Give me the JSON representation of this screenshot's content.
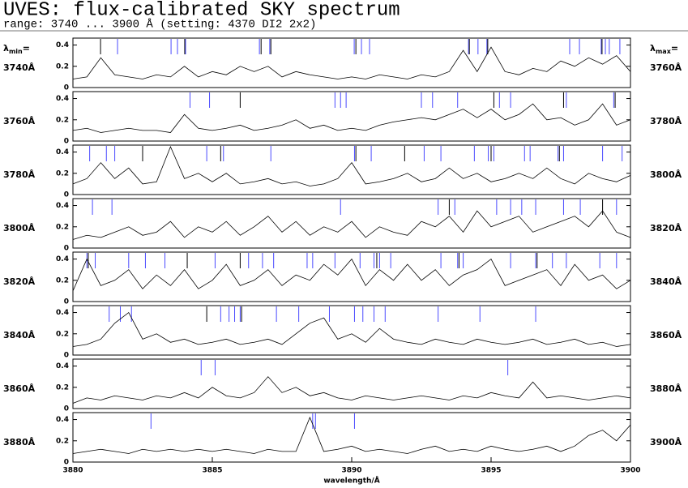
{
  "header": {
    "title": "UVES: flux-calibrated SKY spectrum",
    "subtitle": "range: 3740 ... 3900 Å (setting: 4370 DI2 2x2)",
    "lambda_min": {
      "symbol": "λ",
      "sub": "min",
      "eq": "="
    },
    "lambda_max": {
      "symbol": "λ",
      "sub": "max",
      "eq": "="
    }
  },
  "chart_data": [
    {
      "type": "line",
      "xlim": [
        3740,
        3760
      ],
      "range_labels": [
        "3740Å",
        "3760Å"
      ],
      "ylim": [
        0,
        0.45
      ],
      "yticks": [
        0,
        0.2,
        0.4
      ],
      "color": "#000000",
      "x": [
        3740,
        3740.5,
        3741,
        3741.5,
        3742,
        3742.5,
        3743,
        3743.5,
        3744,
        3744.5,
        3745,
        3745.5,
        3746,
        3746.5,
        3747,
        3747.5,
        3748,
        3748.5,
        3749,
        3749.5,
        3750,
        3750.5,
        3751,
        3751.5,
        3752,
        3752.5,
        3753,
        3753.5,
        3754,
        3754.5,
        3755,
        3755.5,
        3756,
        3756.5,
        3757,
        3757.5,
        3758,
        3758.5,
        3759,
        3759.5,
        3760
      ],
      "values": [
        0.08,
        0.1,
        0.28,
        0.12,
        0.1,
        0.08,
        0.12,
        0.1,
        0.2,
        0.1,
        0.15,
        0.12,
        0.2,
        0.15,
        0.2,
        0.1,
        0.15,
        0.12,
        0.1,
        0.08,
        0.1,
        0.08,
        0.12,
        0.1,
        0.08,
        0.12,
        0.1,
        0.15,
        0.35,
        0.15,
        0.38,
        0.15,
        0.12,
        0.18,
        0.15,
        0.25,
        0.2,
        0.28,
        0.22,
        0.3,
        0.15
      ],
      "markers": [
        {
          "color": "#4a4aff",
          "x": [
            3741.6,
            3743.52,
            3743.75,
            3744.04,
            3746.69,
            3747.06,
            3750.09,
            3750.35,
            3750.64,
            3754.19,
            3754.53,
            3754.85,
            3757.82,
            3758.17,
            3758.95,
            3759.1,
            3759.24,
            3759.62
          ]
        },
        {
          "color": "#000000",
          "x": [
            3740.99,
            3744.01,
            3746.75,
            3747.1,
            3750.15,
            3754.22,
            3754.88,
            3758.98
          ]
        }
      ]
    },
    {
      "type": "line",
      "xlim": [
        3760,
        3780
      ],
      "range_labels": [
        "3760Å",
        "3780Å"
      ],
      "ylim": [
        0,
        0.45
      ],
      "yticks": [
        0,
        0.2,
        0.4
      ],
      "color": "#000000",
      "x": [
        3760,
        3760.5,
        3761,
        3761.5,
        3762,
        3762.5,
        3763,
        3763.5,
        3764,
        3764.5,
        3765,
        3765.5,
        3766,
        3766.5,
        3767,
        3767.5,
        3768,
        3768.5,
        3769,
        3769.5,
        3770,
        3770.5,
        3771,
        3771.5,
        3772,
        3772.5,
        3773,
        3773.5,
        3774,
        3774.5,
        3775,
        3775.5,
        3776,
        3776.5,
        3777,
        3777.5,
        3778,
        3778.5,
        3779,
        3779.5,
        3780
      ],
      "values": [
        0.1,
        0.12,
        0.08,
        0.1,
        0.12,
        0.1,
        0.1,
        0.08,
        0.25,
        0.12,
        0.1,
        0.12,
        0.15,
        0.1,
        0.12,
        0.15,
        0.2,
        0.12,
        0.15,
        0.1,
        0.12,
        0.1,
        0.15,
        0.18,
        0.2,
        0.22,
        0.2,
        0.25,
        0.3,
        0.22,
        0.3,
        0.2,
        0.25,
        0.35,
        0.2,
        0.22,
        0.15,
        0.2,
        0.35,
        0.15,
        0.2
      ],
      "markers": [
        {
          "color": "#4a4aff",
          "x": [
            3764.2,
            3764.9,
            3769.4,
            3769.6,
            3769.8,
            3772.5,
            3772.9,
            3773.8,
            3775.3,
            3775.7,
            3777.7,
            3779.4
          ]
        },
        {
          "color": "#000000",
          "x": [
            3766,
            3775.1,
            3777.6,
            3779.45
          ]
        }
      ]
    },
    {
      "type": "line",
      "xlim": [
        3780,
        3800
      ],
      "range_labels": [
        "3780Å",
        "3800Å"
      ],
      "ylim": [
        0,
        0.45
      ],
      "yticks": [
        0,
        0.2,
        0.4
      ],
      "color": "#000000",
      "x": [
        3780,
        3780.5,
        3781,
        3781.5,
        3782,
        3782.5,
        3783,
        3783.5,
        3784,
        3784.5,
        3785,
        3785.5,
        3786,
        3786.5,
        3787,
        3787.5,
        3788,
        3788.5,
        3789,
        3789.5,
        3790,
        3790.5,
        3791,
        3791.5,
        3792,
        3792.5,
        3793,
        3793.5,
        3794,
        3794.5,
        3795,
        3795.5,
        3796,
        3796.5,
        3797,
        3797.5,
        3798,
        3798.5,
        3799,
        3799.5,
        3800
      ],
      "values": [
        0.1,
        0.15,
        0.3,
        0.15,
        0.25,
        0.1,
        0.12,
        0.45,
        0.15,
        0.2,
        0.12,
        0.2,
        0.1,
        0.12,
        0.15,
        0.1,
        0.12,
        0.08,
        0.1,
        0.15,
        0.3,
        0.1,
        0.12,
        0.15,
        0.2,
        0.12,
        0.15,
        0.25,
        0.15,
        0.2,
        0.12,
        0.15,
        0.2,
        0.15,
        0.25,
        0.15,
        0.1,
        0.2,
        0.15,
        0.12,
        0.18
      ],
      "markers": [
        {
          "color": "#4a4aff",
          "x": [
            3780.6,
            3781.2,
            3781.5,
            3784.8,
            3785.4,
            3787.1,
            3790.1,
            3790.7,
            3792.6,
            3793.2,
            3794.4,
            3794.9,
            3795.1,
            3796.2,
            3796.4,
            3797.4,
            3797.6,
            3799,
            3799.7
          ]
        },
        {
          "color": "#000000",
          "x": [
            3782.5,
            3785.3,
            3790.15,
            3791.9,
            3795,
            3797.45
          ]
        }
      ]
    },
    {
      "type": "line",
      "xlim": [
        3800,
        3820
      ],
      "range_labels": [
        "3800Å",
        "3820Å"
      ],
      "ylim": [
        0,
        0.45
      ],
      "yticks": [
        0,
        0.2,
        0.4
      ],
      "color": "#000000",
      "x": [
        3800,
        3800.5,
        3801,
        3801.5,
        3802,
        3802.5,
        3803,
        3803.5,
        3804,
        3804.5,
        3805,
        3805.5,
        3806,
        3806.5,
        3807,
        3807.5,
        3808,
        3808.5,
        3809,
        3809.5,
        3810,
        3810.5,
        3811,
        3811.5,
        3812,
        3812.5,
        3813,
        3813.5,
        3814,
        3814.5,
        3815,
        3815.5,
        3816,
        3816.5,
        3817,
        3817.5,
        3818,
        3818.5,
        3819,
        3819.5,
        3820
      ],
      "values": [
        0.08,
        0.12,
        0.1,
        0.15,
        0.2,
        0.12,
        0.15,
        0.25,
        0.1,
        0.2,
        0.15,
        0.25,
        0.12,
        0.2,
        0.3,
        0.15,
        0.25,
        0.12,
        0.2,
        0.15,
        0.25,
        0.1,
        0.2,
        0.15,
        0.12,
        0.25,
        0.2,
        0.3,
        0.15,
        0.35,
        0.2,
        0.25,
        0.3,
        0.15,
        0.2,
        0.25,
        0.3,
        0.2,
        0.35,
        0.15,
        0.1
      ],
      "markers": [
        {
          "color": "#4a4aff",
          "x": [
            3800.7,
            3801.4,
            3809.6,
            3813.1,
            3813.7,
            3815.2,
            3815.7,
            3816.1,
            3816.6,
            3817.6,
            3818.2,
            3819.5
          ]
        },
        {
          "color": "#000000",
          "x": [
            3813.5,
            3819
          ]
        }
      ]
    },
    {
      "type": "line",
      "xlim": [
        3820,
        3840
      ],
      "range_labels": [
        "3820Å",
        "3840Å"
      ],
      "ylim": [
        0,
        0.45
      ],
      "yticks": [
        0,
        0.2,
        0.4
      ],
      "color": "#000000",
      "x": [
        3820,
        3820.5,
        3821,
        3821.5,
        3822,
        3822.5,
        3823,
        3823.5,
        3824,
        3824.5,
        3825,
        3825.5,
        3826,
        3826.5,
        3827,
        3827.5,
        3828,
        3828.5,
        3829,
        3829.5,
        3830,
        3830.5,
        3831,
        3831.5,
        3832,
        3832.5,
        3833,
        3833.5,
        3834,
        3834.5,
        3835,
        3835.5,
        3836,
        3836.5,
        3837,
        3837.5,
        3838,
        3838.5,
        3839,
        3839.5,
        3840
      ],
      "values": [
        0.1,
        0.4,
        0.15,
        0.2,
        0.3,
        0.12,
        0.25,
        0.15,
        0.3,
        0.12,
        0.2,
        0.35,
        0.15,
        0.2,
        0.3,
        0.15,
        0.25,
        0.2,
        0.35,
        0.25,
        0.4,
        0.15,
        0.3,
        0.2,
        0.35,
        0.2,
        0.3,
        0.15,
        0.25,
        0.3,
        0.4,
        0.15,
        0.2,
        0.25,
        0.3,
        0.15,
        0.35,
        0.2,
        0.25,
        0.12,
        0.2
      ],
      "markers": [
        {
          "color": "#4a4aff",
          "x": [
            3820.5,
            3820.8,
            3822,
            3822.6,
            3823.3,
            3825.1,
            3826.3,
            3826.8,
            3827.2,
            3828.4,
            3828.6,
            3829.4,
            3830.3,
            3830.8,
            3831,
            3831.4,
            3833.2,
            3833.8,
            3834,
            3835.7,
            3836.6,
            3837.2,
            3837.7,
            3838.9,
            3839.5
          ]
        },
        {
          "color": "#000000",
          "x": [
            3820.55,
            3824.1,
            3826,
            3830.9,
            3833.85,
            3836.65
          ]
        }
      ]
    },
    {
      "type": "line",
      "xlim": [
        3840,
        3860
      ],
      "range_labels": [
        "3840Å",
        "3860Å"
      ],
      "ylim": [
        0,
        0.45
      ],
      "yticks": [
        0,
        0.2,
        0.4
      ],
      "color": "#000000",
      "x": [
        3840,
        3840.5,
        3841,
        3841.5,
        3842,
        3842.5,
        3843,
        3843.5,
        3844,
        3844.5,
        3845,
        3845.5,
        3846,
        3846.5,
        3847,
        3847.5,
        3848,
        3848.5,
        3849,
        3849.5,
        3850,
        3850.5,
        3851,
        3851.5,
        3852,
        3852.5,
        3853,
        3853.5,
        3854,
        3854.5,
        3855,
        3855.5,
        3856,
        3856.5,
        3857,
        3857.5,
        3858,
        3858.5,
        3859,
        3859.5,
        3860
      ],
      "values": [
        0.08,
        0.1,
        0.15,
        0.3,
        0.4,
        0.15,
        0.2,
        0.12,
        0.15,
        0.1,
        0.12,
        0.15,
        0.1,
        0.12,
        0.15,
        0.1,
        0.2,
        0.3,
        0.35,
        0.15,
        0.2,
        0.12,
        0.25,
        0.15,
        0.12,
        0.1,
        0.15,
        0.12,
        0.1,
        0.15,
        0.12,
        0.1,
        0.12,
        0.15,
        0.1,
        0.12,
        0.15,
        0.1,
        0.12,
        0.08,
        0.1
      ],
      "markers": [
        {
          "color": "#4a4aff",
          "x": [
            3841.3,
            3841.7,
            3842.1,
            3845.3,
            3845.6,
            3845.8,
            3846,
            3847.3,
            3848.1,
            3849.2,
            3850.1,
            3850.4,
            3850.8,
            3851.2,
            3853.1,
            3854.6,
            3856.6
          ]
        },
        {
          "color": "#000000",
          "x": [
            3844.8,
            3846.05
          ]
        }
      ]
    },
    {
      "type": "line",
      "xlim": [
        3860,
        3880
      ],
      "range_labels": [
        "3860Å",
        "3880Å"
      ],
      "ylim": [
        0,
        0.45
      ],
      "yticks": [
        0,
        0.2,
        0.4
      ],
      "color": "#000000",
      "x": [
        3860,
        3860.5,
        3861,
        3861.5,
        3862,
        3862.5,
        3863,
        3863.5,
        3864,
        3864.5,
        3865,
        3865.5,
        3866,
        3866.5,
        3867,
        3867.5,
        3868,
        3868.5,
        3869,
        3869.5,
        3870,
        3870.5,
        3871,
        3871.5,
        3872,
        3872.5,
        3873,
        3873.5,
        3874,
        3874.5,
        3875,
        3875.5,
        3876,
        3876.5,
        3877,
        3877.5,
        3878,
        3878.5,
        3879,
        3879.5,
        3880
      ],
      "values": [
        0.05,
        0.1,
        0.08,
        0.12,
        0.1,
        0.08,
        0.12,
        0.1,
        0.15,
        0.1,
        0.2,
        0.12,
        0.1,
        0.15,
        0.3,
        0.15,
        0.2,
        0.12,
        0.15,
        0.1,
        0.08,
        0.12,
        0.1,
        0.08,
        0.1,
        0.12,
        0.1,
        0.08,
        0.12,
        0.1,
        0.15,
        0.12,
        0.1,
        0.25,
        0.1,
        0.12,
        0.1,
        0.08,
        0.1,
        0.12,
        0.1
      ],
      "markers": [
        {
          "color": "#4a4aff",
          "x": [
            3864.6,
            3865.1,
            3875.6
          ]
        }
      ]
    },
    {
      "type": "line",
      "xlim": [
        3880,
        3900
      ],
      "range_labels": [
        "3880Å",
        "3900Å"
      ],
      "ylim": [
        0,
        0.45
      ],
      "yticks": [
        0,
        0.2,
        0.4
      ],
      "color": "#000000",
      "xticks": [
        3880,
        3885,
        3890,
        3895,
        3900
      ],
      "xlabel": "wavelength/Å",
      "x": [
        3880,
        3880.5,
        3881,
        3881.5,
        3882,
        3882.5,
        3883,
        3883.5,
        3884,
        3884.5,
        3885,
        3885.5,
        3886,
        3886.5,
        3887,
        3887.5,
        3888,
        3888.5,
        3889,
        3889.5,
        3890,
        3890.5,
        3891,
        3891.5,
        3892,
        3892.5,
        3893,
        3893.5,
        3894,
        3894.5,
        3895,
        3895.5,
        3896,
        3896.5,
        3897,
        3897.5,
        3898,
        3898.5,
        3899,
        3899.5,
        3900
      ],
      "values": [
        0.08,
        0.1,
        0.12,
        0.1,
        0.08,
        0.12,
        0.1,
        0.12,
        0.1,
        0.12,
        0.1,
        0.12,
        0.1,
        0.08,
        0.12,
        0.1,
        0.1,
        0.42,
        0.1,
        0.12,
        0.15,
        0.1,
        0.12,
        0.1,
        0.08,
        0.12,
        0.15,
        0.1,
        0.12,
        0.1,
        0.15,
        0.12,
        0.1,
        0.12,
        0.15,
        0.1,
        0.15,
        0.25,
        0.3,
        0.2,
        0.35
      ],
      "markers": [
        {
          "color": "#4a4aff",
          "x": [
            3882.8,
            3888.6,
            3888.7,
            3890.1
          ]
        }
      ]
    }
  ]
}
